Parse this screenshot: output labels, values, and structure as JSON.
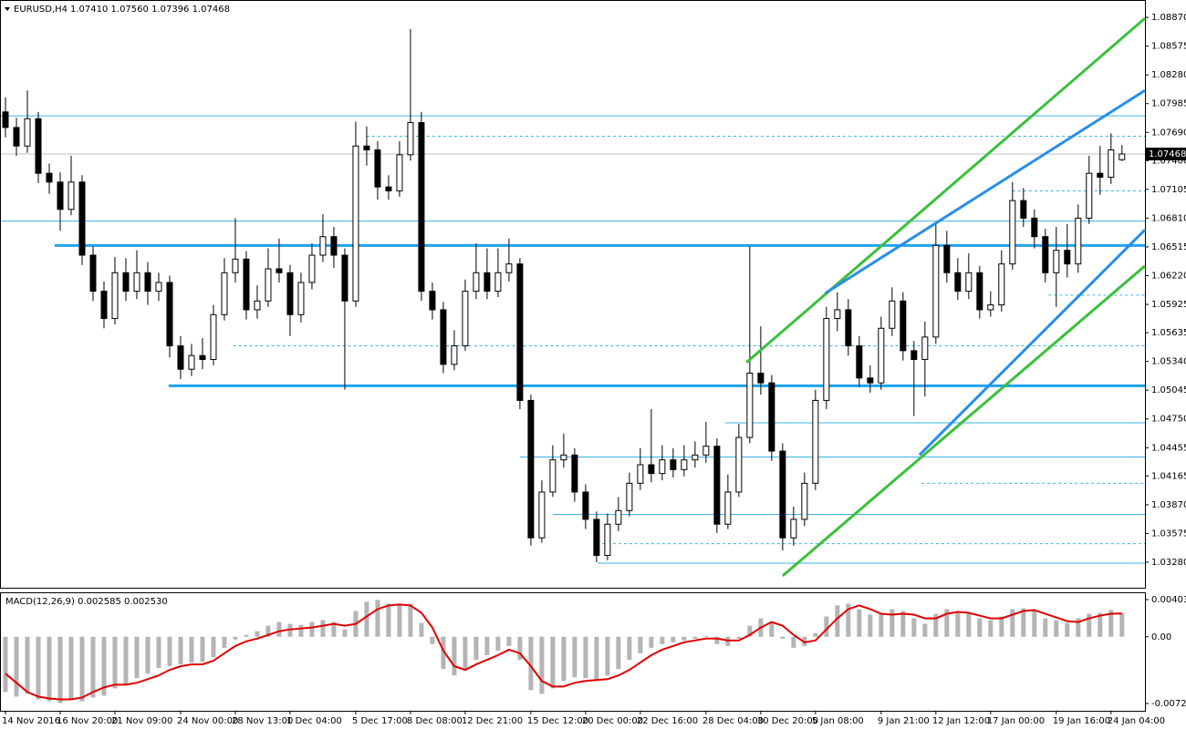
{
  "chart_data": [
    {
      "type": "candlestick",
      "title": "EURUSD,H4",
      "ohlc_label": "1.07410 1.07560 1.07396 1.07468",
      "xlim": [
        -0.5,
        104.1
      ],
      "ylim": [
        1.03018,
        1.09048
      ],
      "yticks": [
        {
          "value": 1.0887,
          "label": "1.08870"
        },
        1.08575,
        {
          "value": 1.0828,
          "label": "1.08280"
        },
        1.07985,
        {
          "value": 1.0769,
          "label": "1.07690"
        },
        {
          "value": 1.074,
          "label": "1.07400"
        },
        1.07105,
        {
          "value": 1.0681,
          "label": "1.06810"
        },
        1.06515,
        {
          "value": 1.0622,
          "label": "1.06220"
        },
        1.05925,
        1.05635,
        {
          "value": 1.0534,
          "label": "1.05340"
        },
        1.05045,
        {
          "value": 1.0475,
          "label": "1.04750"
        },
        1.04455,
        1.04165,
        {
          "value": 1.0387,
          "label": "1.03870"
        },
        1.03575,
        {
          "value": 1.0328,
          "label": "1.03280"
        }
      ],
      "open": [
        1.079,
        1.0774,
        1.0755,
        1.0783,
        1.0727,
        1.0718,
        1.069,
        1.0718,
        1.0643,
        1.0606,
        1.0578,
        1.0625,
        1.0606,
        1.0625,
        1.0606,
        1.0615,
        1.055,
        1.0526,
        1.054,
        1.0536,
        1.0582,
        1.0625,
        1.0639,
        1.0587,
        1.0596,
        1.0629,
        1.0625,
        1.0582,
        1.0615,
        1.0643,
        1.0662,
        1.0643,
        1.0596,
        1.0755,
        1.0751,
        1.0713,
        1.0709,
        1.0746,
        1.0779,
        1.0606,
        1.0587,
        1.0531,
        1.055,
        1.0606,
        1.0625,
        1.0606,
        1.0625,
        1.0634,
        1.0494,
        1.0353,
        1.04,
        1.0433,
        1.0438,
        1.04,
        1.0372,
        1.0335,
        1.0367,
        1.0381,
        1.0409,
        1.0428,
        1.0419,
        1.0433,
        1.0423,
        1.0433,
        1.0438,
        1.0447,
        1.0367,
        1.04,
        1.0456,
        1.0522,
        1.0512,
        1.0442,
        1.0353,
        1.0372,
        1.0409,
        1.0494,
        1.0578,
        1.0587,
        1.055,
        1.0517,
        1.0512,
        1.0568,
        1.0596,
        1.0545,
        1.0536,
        1.0559,
        1.0653,
        1.0625,
        1.0606,
        1.0625,
        1.0587,
        1.0592,
        1.0634,
        1.0699,
        1.0681,
        1.0662,
        1.0625,
        1.0648,
        1.0634,
        1.0681,
        1.0727,
        1.0723,
        1.0741
      ],
      "high": [
        1.0805,
        1.0784,
        1.0812,
        1.079,
        1.0737,
        1.0728,
        1.0745,
        1.0725,
        1.0652,
        1.0616,
        1.0641,
        1.064,
        1.0648,
        1.0636,
        1.0625,
        1.0622,
        1.056,
        1.0552,
        1.0558,
        1.0592,
        1.064,
        1.0681,
        1.0647,
        1.0612,
        1.065,
        1.066,
        1.0633,
        1.0625,
        1.0655,
        1.0685,
        1.0672,
        1.065,
        1.078,
        1.0775,
        1.076,
        1.0725,
        1.076,
        1.0875,
        1.079,
        1.0615,
        1.0595,
        1.0566,
        1.0618,
        1.0655,
        1.065,
        1.065,
        1.066,
        1.064,
        1.05,
        1.0412,
        1.0448,
        1.046,
        1.0445,
        1.0408,
        1.038,
        1.0378,
        1.0395,
        1.042,
        1.0445,
        1.0485,
        1.0448,
        1.0445,
        1.0448,
        1.0452,
        1.0472,
        1.0455,
        1.0418,
        1.047,
        1.0652,
        1.057,
        1.052,
        1.045,
        1.0385,
        1.042,
        1.0505,
        1.059,
        1.0605,
        1.0598,
        1.056,
        1.053,
        1.058,
        1.061,
        1.0605,
        1.0555,
        1.0575,
        1.0675,
        1.0668,
        1.064,
        1.0645,
        1.0632,
        1.0606,
        1.0648,
        1.0718,
        1.0712,
        1.069,
        1.067,
        1.0672,
        1.0675,
        1.0695,
        1.0745,
        1.0755,
        1.0768,
        1.0756
      ],
      "low": [
        1.0764,
        1.0745,
        1.0748,
        1.0717,
        1.0706,
        1.0668,
        1.0684,
        1.0633,
        1.0596,
        1.0568,
        1.0572,
        1.0596,
        1.0598,
        1.0592,
        1.0596,
        1.0538,
        1.0516,
        1.0519,
        1.0526,
        1.053,
        1.0576,
        1.0615,
        1.0577,
        1.0578,
        1.059,
        1.0615,
        1.056,
        1.0574,
        1.0608,
        1.0636,
        1.063,
        1.0505,
        1.059,
        1.0735,
        1.07,
        1.07,
        1.0703,
        1.074,
        1.0596,
        1.0577,
        1.0522,
        1.0525,
        1.0545,
        1.0598,
        1.0598,
        1.06,
        1.0616,
        1.0485,
        1.0345,
        1.0348,
        1.0395,
        1.0425,
        1.039,
        1.0362,
        1.0328,
        1.033,
        1.036,
        1.0375,
        1.0402,
        1.041,
        1.0412,
        1.0415,
        1.0416,
        1.0425,
        1.043,
        1.0358,
        1.0362,
        1.0395,
        1.045,
        1.05,
        1.0432,
        1.034,
        1.0345,
        1.0365,
        1.0402,
        1.0485,
        1.0565,
        1.054,
        1.0508,
        1.0502,
        1.0505,
        1.056,
        1.0535,
        1.0478,
        1.0498,
        1.0552,
        1.0615,
        1.0597,
        1.0598,
        1.0578,
        1.058,
        1.0585,
        1.0628,
        1.0672,
        1.065,
        1.0615,
        1.059,
        1.062,
        1.0625,
        1.0675,
        1.0705,
        1.0716,
        1.07396
      ],
      "close": [
        1.0774,
        1.0755,
        1.0783,
        1.0727,
        1.0718,
        1.069,
        1.0718,
        1.0643,
        1.0606,
        1.0578,
        1.0625,
        1.0606,
        1.0625,
        1.0606,
        1.0615,
        1.055,
        1.0526,
        1.054,
        1.0536,
        1.0582,
        1.0625,
        1.0639,
        1.0587,
        1.0596,
        1.0629,
        1.0625,
        1.0582,
        1.0615,
        1.0643,
        1.0662,
        1.0643,
        1.0596,
        1.0755,
        1.0751,
        1.0713,
        1.0709,
        1.0746,
        1.0779,
        1.0606,
        1.0587,
        1.0531,
        1.055,
        1.0606,
        1.0625,
        1.0606,
        1.0625,
        1.0634,
        1.0494,
        1.0353,
        1.04,
        1.0433,
        1.0438,
        1.04,
        1.0372,
        1.0335,
        1.0367,
        1.0381,
        1.0409,
        1.0428,
        1.0419,
        1.0433,
        1.0423,
        1.0433,
        1.0438,
        1.0447,
        1.0367,
        1.04,
        1.0456,
        1.0522,
        1.0512,
        1.0442,
        1.0353,
        1.0372,
        1.0409,
        1.0494,
        1.0578,
        1.0587,
        1.055,
        1.0517,
        1.0512,
        1.0568,
        1.0596,
        1.0545,
        1.0536,
        1.0559,
        1.0653,
        1.0625,
        1.0606,
        1.0625,
        1.0587,
        1.0592,
        1.0634,
        1.0699,
        1.0681,
        1.0662,
        1.0625,
        1.0648,
        1.0634,
        1.0681,
        1.0727,
        1.0723,
        1.0751,
        1.07468
      ],
      "color": "#000000",
      "levels": [
        {
          "price": 1.0786,
          "from": -0.5,
          "style": "solid",
          "width": 1,
          "color": "#3cb4e6"
        },
        {
          "price": 1.0765,
          "from": 33,
          "style": "dashed",
          "width": 1,
          "color": "#3cb4e6"
        },
        {
          "price": 1.0709,
          "from": 92,
          "style": "dashed",
          "width": 1,
          "color": "#3cb4e6"
        },
        {
          "price": 1.0678,
          "from": -0.5,
          "style": "solid",
          "width": 1,
          "color": "#3cb4e6"
        },
        {
          "price": 1.0653,
          "from": 4.5,
          "style": "solid",
          "width": 3,
          "color": "#1ea4ef"
        },
        {
          "price": 1.0602,
          "from": 95.3,
          "style": "dashed",
          "width": 1,
          "color": "#3cb4e6"
        },
        {
          "price": 1.055,
          "from": 20.8,
          "style": "dashed",
          "width": 1,
          "color": "#3cb4e6"
        },
        {
          "price": 1.0509,
          "from": 14.9,
          "style": "solid",
          "width": 3,
          "color": "#1ea4ef"
        },
        {
          "price": 1.0471,
          "from": 65.75,
          "style": "solid",
          "width": 1,
          "color": "#3cb4e6"
        },
        {
          "price": 1.0436,
          "from": 47,
          "style": "solid",
          "width": 1,
          "color": "#3cb4e6"
        },
        {
          "price": 1.0409,
          "from": 83.7,
          "style": "dashed",
          "width": 1,
          "color": "#3cb4e6"
        },
        {
          "price": 1.0377,
          "from": 50,
          "style": "solid",
          "width": 1,
          "color": "#3cb4e6"
        },
        {
          "price": 1.0347,
          "from": 54.5,
          "style": "dashed",
          "width": 1,
          "color": "#3cb4e6"
        },
        {
          "price": 1.0327,
          "from": 54.1,
          "style": "solid",
          "width": 1,
          "color": "#3cb4e6"
        }
      ],
      "trendlines": [
        {
          "x": [
            67.7,
            104.1
          ],
          "y": [
            1.0533,
            1.0886
          ],
          "color": "#3cc03c"
        },
        {
          "x": [
            71,
            104.1
          ],
          "y": [
            1.0314,
            1.0632
          ],
          "color": "#3cc03c"
        },
        {
          "x": [
            74.9,
            104.1
          ],
          "y": [
            1.0604,
            1.0812
          ],
          "color": "#2a8ee8"
        },
        {
          "x": [
            83.5,
            104.1
          ],
          "y": [
            1.0438,
            1.0669
          ],
          "color": "#2a8ee8"
        }
      ]
    },
    {
      "type": "macd",
      "title": "MACD(12,26,9) 0.002585 0.002530",
      "xlim": [
        -0.5,
        104.1
      ],
      "ylim": [
        -0.008038,
        0.004828
      ],
      "yticks": [
        0.004036,
        {
          "value": 0,
          "label": "0.00"
        },
        -0.007246
      ],
      "xticks": [
        {
          "value": 0,
          "label": "14 Nov 2016"
        },
        {
          "value": 5,
          "label": "16 Nov 20:00"
        },
        {
          "value": 10,
          "label": "21 Nov 09:00"
        },
        {
          "value": 16,
          "label": "24 Nov 00:00"
        },
        {
          "value": 21,
          "label": "28 Nov 13:00"
        },
        {
          "value": 26,
          "label": "1 Dec 04:00"
        },
        {
          "value": 32,
          "label": "5 Dec 17:00"
        },
        {
          "value": 37,
          "label": "8 Dec 08:00"
        },
        {
          "value": 42,
          "label": "12 Dec 21:00"
        },
        {
          "value": 48,
          "label": "15 Dec 12:00"
        },
        {
          "value": 53,
          "label": "20 Dec 00:00"
        },
        {
          "value": 58,
          "label": "22 Dec 16:00"
        },
        {
          "value": 64,
          "label": "28 Dec 04:00"
        },
        {
          "value": 69,
          "label": "30 Dec 20:00"
        },
        {
          "value": 74,
          "label": "5 Jan 08:00"
        },
        {
          "value": 80,
          "label": "9 Jan 21:00"
        },
        {
          "value": 85,
          "label": "12 Jan 12:00"
        },
        {
          "value": 90,
          "label": "17 Jan 00:00"
        },
        {
          "value": 96,
          "label": "19 Jan 16:00"
        },
        {
          "value": 101,
          "label": "24 Jan 04:00"
        }
      ],
      "histogram": {
        "color": "#b4b4b4",
        "values": [
          -0.006,
          -0.0065,
          -0.0062,
          -0.0068,
          -0.007,
          -0.0072,
          -0.0068,
          -0.007,
          -0.0066,
          -0.0064,
          -0.0056,
          -0.0052,
          -0.0045,
          -0.004,
          -0.0034,
          -0.0032,
          -0.003,
          -0.0028,
          -0.0027,
          -0.0022,
          -0.0012,
          -0.0003,
          0.0002,
          0.0006,
          0.0012,
          0.0016,
          0.0014,
          0.0013,
          0.0016,
          0.0018,
          0.0016,
          0.0008,
          0.0028,
          0.0038,
          0.004,
          0.0036,
          0.0035,
          0.0036,
          0.0015,
          -0.0008,
          -0.0035,
          -0.0042,
          -0.0036,
          -0.0025,
          -0.002,
          -0.0015,
          -0.001,
          -0.0025,
          -0.0058,
          -0.0062,
          -0.0056,
          -0.0048,
          -0.0044,
          -0.0045,
          -0.0048,
          -0.0042,
          -0.0035,
          -0.0025,
          -0.0018,
          -0.0012,
          -0.0008,
          -0.0006,
          -0.0004,
          -0.0002,
          0.0001,
          -0.0008,
          -0.001,
          -0.0002,
          0.0012,
          0.002,
          0.0015,
          -0.0002,
          -0.0012,
          -0.001,
          0.0004,
          0.0022,
          0.0034,
          0.0036,
          0.003,
          0.0024,
          0.0025,
          0.003,
          0.0028,
          0.002,
          0.0014,
          0.0025,
          0.003,
          0.0027,
          0.0025,
          0.002,
          0.0018,
          0.0022,
          0.003,
          0.0031,
          0.0028,
          0.002,
          0.0018,
          0.0015,
          0.002,
          0.0025,
          0.0026,
          0.0029,
          0.002585
        ]
      },
      "signal": {
        "color": "#e00000",
        "values": [
          -0.004,
          -0.005,
          -0.006,
          -0.0065,
          -0.0067,
          -0.0068,
          -0.0068,
          -0.0066,
          -0.006,
          -0.0055,
          -0.0052,
          -0.0052,
          -0.005,
          -0.0046,
          -0.0042,
          -0.0036,
          -0.0032,
          -0.003,
          -0.003,
          -0.0026,
          -0.0018,
          -0.001,
          -0.0005,
          -0.0002,
          0.0002,
          0.0006,
          0.0008,
          0.0009,
          0.001,
          0.0012,
          0.0014,
          0.0012,
          0.0014,
          0.0022,
          0.003,
          0.0034,
          0.0035,
          0.0034,
          0.0026,
          0.001,
          -0.0015,
          -0.0032,
          -0.0036,
          -0.003,
          -0.0025,
          -0.002,
          -0.0014,
          -0.0018,
          -0.0032,
          -0.0048,
          -0.0054,
          -0.0054,
          -0.005,
          -0.0048,
          -0.0047,
          -0.0046,
          -0.0042,
          -0.0036,
          -0.0028,
          -0.002,
          -0.0014,
          -0.001,
          -0.0006,
          -0.0004,
          -0.0002,
          -0.0002,
          -0.0004,
          -0.0004,
          0.0002,
          0.001,
          0.0016,
          0.0012,
          0.0002,
          -0.0006,
          -0.0004,
          0.0008,
          0.002,
          0.003,
          0.0034,
          0.003,
          0.0025,
          0.0024,
          0.0025,
          0.0024,
          0.002,
          0.002,
          0.0025,
          0.0027,
          0.0026,
          0.0023,
          0.002,
          0.002,
          0.0024,
          0.0028,
          0.0029,
          0.0025,
          0.0021,
          0.0017,
          0.0016,
          0.002,
          0.0023,
          0.0025,
          0.00253
        ]
      }
    }
  ]
}
